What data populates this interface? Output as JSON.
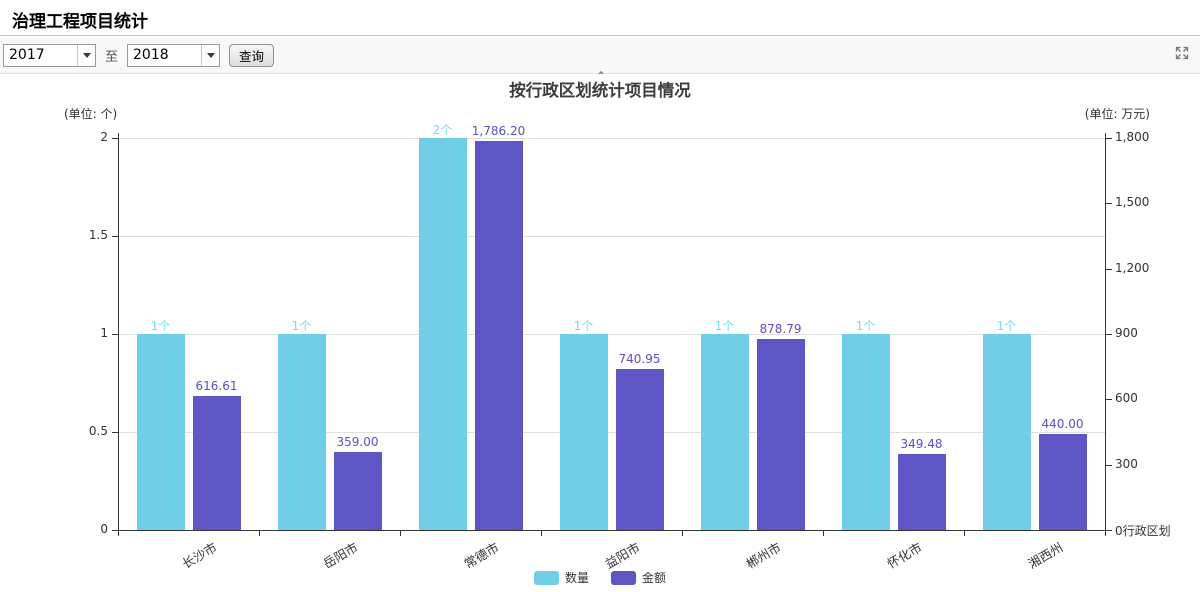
{
  "page": {
    "title": "治理工程项目统计"
  },
  "toolbar": {
    "year_from": "2017",
    "to_label": "至",
    "year_to": "2018",
    "query_label": "查询"
  },
  "icons": {
    "fullscreen": "expand-arrows",
    "collapse": "chevron-up",
    "dropdown": "caret-down"
  },
  "chart_data": {
    "type": "bar",
    "title": "按行政区划统计项目情况",
    "left_unit": "(单位: 个)",
    "right_unit": "(单位: 万元)",
    "x_axis_name": "行政区划",
    "categories": [
      "长沙市",
      "岳阳市",
      "常德市",
      "益阳市",
      "郴州市",
      "怀化市",
      "湘西州"
    ],
    "series": [
      {
        "name": "数量",
        "axis": "left",
        "color": "#70CFE6",
        "label_color": "#7ED8EC",
        "values": [
          1,
          1,
          2,
          1,
          1,
          1,
          1
        ],
        "labels": [
          "1个",
          "1个",
          "2个",
          "1个",
          "1个",
          "1个",
          "1个"
        ]
      },
      {
        "name": "金额",
        "axis": "right",
        "color": "#5E56C5",
        "label_color": "#5B4EC9",
        "values": [
          616.61,
          359.0,
          1786.2,
          740.95,
          878.79,
          349.48,
          440.0
        ],
        "labels": [
          "616.61",
          "359.00",
          "1,786.20",
          "740.95",
          "878.79",
          "349.48",
          "440.00"
        ]
      }
    ],
    "left_axis": {
      "min": 0,
      "max": 2,
      "ticks": [
        "2",
        "1.5",
        "1",
        "0.5",
        "0"
      ]
    },
    "right_axis": {
      "min": 0,
      "max": 1800,
      "ticks": [
        "1,800",
        "1,500",
        "1,200",
        "900",
        "600",
        "300",
        "0"
      ]
    },
    "legend": [
      "数量",
      "金额"
    ],
    "grid": true,
    "legend_position": "bottom"
  }
}
